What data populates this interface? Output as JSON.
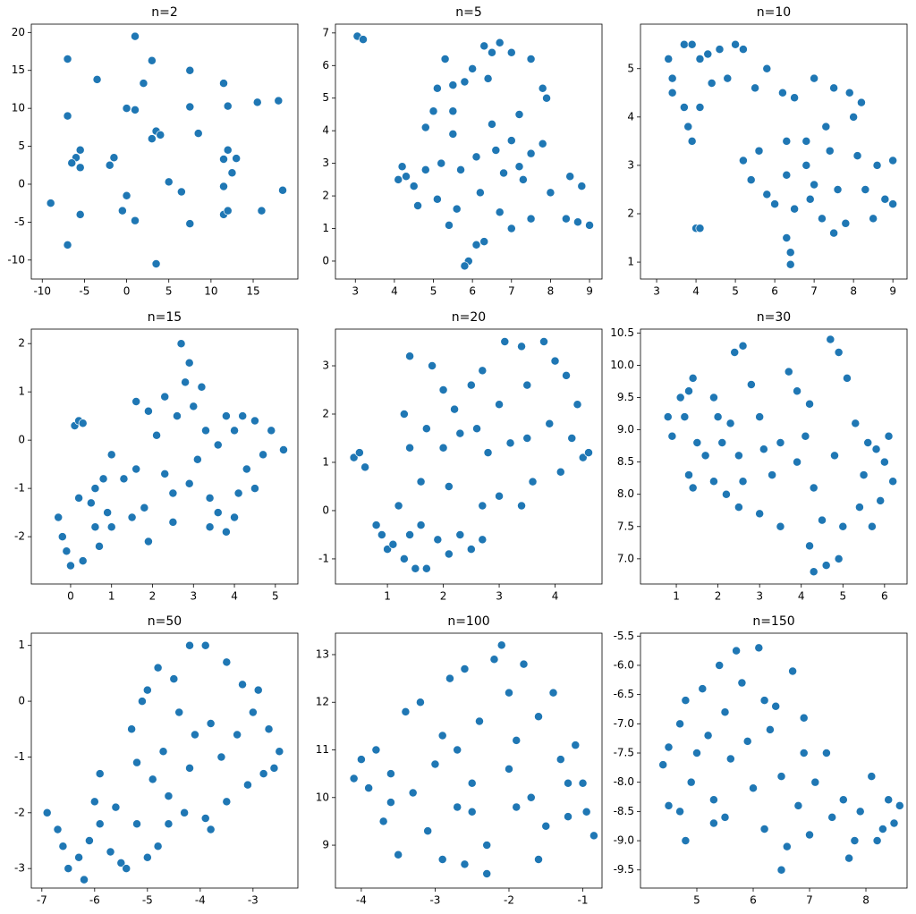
{
  "chart_data": [
    {
      "type": "scatter",
      "title": "n=2",
      "color": "#1f77b4",
      "x": [
        1,
        -7,
        3,
        7.5,
        -3.5,
        2,
        11.5,
        -7,
        0,
        1,
        7.5,
        12,
        15.5,
        18,
        3.5,
        4,
        3,
        8.5,
        -5.5,
        -6,
        -6.5,
        -5.5,
        -2,
        -1.5,
        12,
        11.5,
        13,
        12.5,
        5,
        6.5,
        0,
        -9,
        -0.5,
        -5.5,
        1,
        7.5,
        11.5,
        12,
        16,
        11.5,
        18.5,
        -7,
        3.5
      ],
      "values": [
        19.5,
        16.5,
        16.3,
        15,
        13.8,
        13.3,
        13.3,
        9,
        10,
        9.8,
        10.2,
        10.3,
        10.8,
        11,
        7,
        6.5,
        6,
        6.7,
        4.5,
        3.5,
        2.8,
        2.2,
        2.5,
        3.5,
        4.5,
        3.3,
        3.4,
        1.5,
        0.3,
        -1,
        -1.5,
        -2.5,
        -3.5,
        -4,
        -4.8,
        -5.2,
        -4,
        -3.5,
        -3.5,
        -0.3,
        -0.8,
        -8,
        -10.5
      ],
      "xlim": [
        -11.3,
        20.3
      ],
      "ylim": [
        -12.5,
        21.1
      ],
      "xticks": [
        -10,
        -5,
        0,
        5,
        10,
        15
      ],
      "yticks": [
        -10,
        -5,
        0,
        5,
        10,
        15,
        20
      ]
    },
    {
      "type": "scatter",
      "title": "n=5",
      "color": "#1f77b4",
      "x": [
        3.05,
        3.2,
        5.3,
        5.5,
        5.1,
        6.3,
        6.5,
        6.7,
        7,
        7.5,
        6,
        6.4,
        5.8,
        7.8,
        7.9,
        5,
        5.5,
        6.5,
        7.2,
        4.8,
        5.5,
        6.6,
        7,
        7.5,
        7.8,
        4.2,
        4.3,
        4.5,
        4.1,
        4.8,
        5.2,
        5.7,
        6.1,
        6.8,
        7.2,
        8.5,
        8.8,
        4.6,
        5.1,
        5.6,
        6.2,
        6.7,
        7.5,
        8,
        8.4,
        9,
        5.4,
        6.3,
        6.1,
        7,
        5.9,
        5.8,
        8.7,
        7.3
      ],
      "values": [
        6.9,
        6.8,
        6.2,
        5.4,
        5.3,
        6.6,
        6.4,
        6.7,
        6.4,
        6.2,
        5.9,
        5.6,
        5.5,
        5.3,
        5,
        4.6,
        4.6,
        4.2,
        4.5,
        4.1,
        3.9,
        3.4,
        3.7,
        3.3,
        3.6,
        2.9,
        2.6,
        2.3,
        2.5,
        2.8,
        3,
        2.8,
        3.2,
        2.7,
        2.9,
        2.6,
        2.3,
        1.7,
        1.9,
        1.6,
        2.1,
        1.5,
        1.3,
        2.1,
        1.3,
        1.1,
        1.1,
        0.6,
        0.5,
        1,
        0,
        -0.15,
        1.2,
        2.5
      ],
      "xlim": [
        2.49,
        9.32
      ],
      "ylim": [
        -0.55,
        7.27
      ],
      "xticks": [
        3,
        4,
        5,
        6,
        7,
        8,
        9
      ],
      "yticks": [
        0,
        1,
        2,
        3,
        4,
        5,
        6,
        7
      ]
    },
    {
      "type": "scatter",
      "title": "n=10",
      "color": "#1f77b4",
      "x": [
        3.3,
        3.4,
        3.7,
        3.9,
        4.1,
        4.3,
        4.6,
        5,
        5.2,
        3.4,
        3.7,
        4.1,
        4.4,
        4.8,
        3.8,
        3.9,
        5.8,
        5.5,
        6.2,
        7,
        7.5,
        7.9,
        8.2,
        6.5,
        8,
        7.3,
        6.8,
        6.3,
        5.6,
        5.2,
        5.4,
        5.8,
        6.3,
        6.8,
        7.4,
        8.1,
        8.6,
        9,
        7,
        7.6,
        8.3,
        8.8,
        6,
        6.5,
        7.2,
        7.8,
        8.5,
        9,
        6.3,
        6.4,
        6.4,
        4,
        4.1,
        7.5,
        6.9
      ],
      "values": [
        5.2,
        4.8,
        5.5,
        5.5,
        5.2,
        5.3,
        5.4,
        5.5,
        5.4,
        4.5,
        4.2,
        4.2,
        4.7,
        4.8,
        3.8,
        3.5,
        5,
        4.6,
        4.5,
        4.8,
        4.6,
        4.5,
        4.3,
        4.4,
        4,
        3.8,
        3.5,
        3.5,
        3.3,
        3.1,
        2.7,
        2.4,
        2.8,
        3,
        3.3,
        3.2,
        3,
        3.1,
        2.6,
        2.5,
        2.5,
        2.3,
        2.2,
        2.1,
        1.9,
        1.8,
        1.9,
        2.2,
        1.5,
        1.2,
        0.95,
        1.7,
        1.7,
        1.6,
        2.3
      ],
      "xlim": [
        2.59,
        9.36
      ],
      "ylim": [
        0.65,
        5.92
      ],
      "xticks": [
        3,
        4,
        5,
        6,
        7,
        8,
        9
      ],
      "yticks": [
        1,
        2,
        3,
        4,
        5
      ]
    },
    {
      "type": "scatter",
      "title": "n=15",
      "color": "#1f77b4",
      "x": [
        0.1,
        0.2,
        0.3,
        -0.3,
        -0.2,
        -0.1,
        0,
        0.3,
        0.2,
        0.5,
        0.6,
        0.7,
        0.9,
        1,
        0.8,
        0.6,
        1,
        1.3,
        1.5,
        1.8,
        1.6,
        1.9,
        1.6,
        1.9,
        2.1,
        2.3,
        2.5,
        2.3,
        2.6,
        2.7,
        2.9,
        2.8,
        3,
        3.3,
        2.9,
        3.1,
        2.5,
        3.4,
        3.6,
        3.8,
        3.4,
        3.6,
        3.8,
        4,
        4.2,
        4.5,
        4.7,
        4.9,
        4.3,
        4.1,
        4.5,
        4,
        5.2,
        3.2
      ],
      "values": [
        0.3,
        0.4,
        0.35,
        -1.6,
        -2,
        -2.3,
        -2.6,
        -2.5,
        -1.2,
        -1.3,
        -1.8,
        -2.2,
        -1.5,
        -1.8,
        -0.8,
        -1,
        -0.3,
        -0.8,
        -1.6,
        -1.4,
        -0.6,
        -2.1,
        0.8,
        0.6,
        0.1,
        -0.7,
        -1.1,
        0.9,
        0.5,
        2,
        1.6,
        1.2,
        0.7,
        0.2,
        -0.9,
        -0.4,
        -1.7,
        -1.2,
        -1.5,
        -1.9,
        -1.8,
        -0.1,
        0.5,
        0.2,
        0.5,
        0.4,
        -0.3,
        0.2,
        -0.6,
        -1.1,
        -1,
        -1.6,
        -0.2,
        1.1
      ],
      "xlim": [
        -0.96,
        5.55
      ],
      "ylim": [
        -2.98,
        2.3
      ],
      "xticks": [
        0,
        1,
        2,
        3,
        4,
        5
      ],
      "yticks": [
        -2,
        -1,
        0,
        1,
        2
      ]
    },
    {
      "type": "scatter",
      "title": "n=20",
      "color": "#1f77b4",
      "x": [
        0.4,
        0.5,
        0.6,
        0.8,
        0.9,
        1,
        1.1,
        1.3,
        1.5,
        1.7,
        1.4,
        1.6,
        1.9,
        2.1,
        2.3,
        2.5,
        2.7,
        1.2,
        1.6,
        1.4,
        1.7,
        1.3,
        1.4,
        1.8,
        2,
        2.2,
        2.5,
        2.7,
        3.1,
        3.4,
        3.8,
        4,
        4.2,
        3.5,
        3,
        2.6,
        2,
        2.3,
        2.8,
        3.2,
        3.5,
        3.9,
        4.3,
        4.5,
        4.6,
        4.1,
        3.6,
        3,
        2.7,
        3.4,
        2.1,
        4.4
      ],
      "values": [
        1.1,
        1.2,
        0.9,
        -0.3,
        -0.5,
        -0.8,
        -0.7,
        -1,
        -1.2,
        -1.2,
        -0.5,
        -0.3,
        -0.6,
        -0.9,
        -0.5,
        -0.8,
        -0.6,
        0.1,
        0.6,
        1.3,
        1.7,
        2,
        3.2,
        3,
        2.5,
        2.1,
        2.6,
        2.9,
        3.5,
        3.4,
        3.5,
        3.1,
        2.8,
        2.6,
        2.2,
        1.7,
        1.3,
        1.6,
        1.2,
        1.4,
        1.5,
        1.8,
        1.5,
        1.1,
        1.2,
        0.8,
        0.6,
        0.3,
        0.1,
        0.1,
        0.5,
        2.2
      ],
      "xlim": [
        0.07,
        4.84
      ],
      "ylim": [
        -1.52,
        3.76
      ],
      "xticks": [
        1,
        2,
        3,
        4
      ],
      "yticks": [
        -1,
        0,
        1,
        2,
        3
      ]
    },
    {
      "type": "scatter",
      "title": "n=30",
      "color": "#1f77b4",
      "x": [
        0.8,
        0.9,
        1.1,
        1.3,
        1.4,
        1.2,
        1.5,
        1.3,
        1.4,
        1.7,
        1.9,
        2,
        2.1,
        2.3,
        2.5,
        1.9,
        2.2,
        2.4,
        2.6,
        2.8,
        3,
        3.1,
        2.6,
        3,
        2.5,
        3.5,
        3.3,
        3.5,
        3.7,
        3.9,
        4.2,
        4.1,
        3.9,
        4.3,
        4.5,
        4.2,
        4.6,
        4.3,
        4.9,
        5,
        4.8,
        4.7,
        4.9,
        5.1,
        5.3,
        5.6,
        5.5,
        5.8,
        6.1,
        6.2,
        5.9,
        5.4,
        5.7,
        6
      ],
      "values": [
        9.2,
        8.9,
        9.5,
        9.6,
        9.8,
        9.2,
        8.8,
        8.3,
        8.1,
        8.6,
        9.5,
        9.2,
        8.8,
        9.1,
        8.6,
        8.2,
        8,
        10.2,
        10.3,
        9.7,
        9.2,
        8.7,
        8.2,
        7.7,
        7.8,
        7.5,
        8.3,
        8.8,
        9.9,
        9.6,
        9.4,
        8.9,
        8.5,
        8.1,
        7.6,
        7.2,
        6.9,
        6.8,
        7,
        7.5,
        8.6,
        10.4,
        10.2,
        9.8,
        9.1,
        8.8,
        8.3,
        8.7,
        8.9,
        8.2,
        7.9,
        7.8,
        7.5,
        8.5
      ],
      "xlim": [
        0.14,
        6.54
      ],
      "ylim": [
        6.61,
        10.56
      ],
      "xticks": [
        1,
        2,
        3,
        4,
        5,
        6
      ],
      "yticks": [
        {
          "value": 7,
          "label": "7.0"
        },
        7.5,
        {
          "value": 8,
          "label": "8.0"
        },
        8.5,
        {
          "value": 9,
          "label": "9.0"
        },
        9.5,
        {
          "value": 10,
          "label": "10.0"
        },
        10.5
      ]
    },
    {
      "type": "scatter",
      "title": "n=50",
      "color": "#1f77b4",
      "x": [
        -6.9,
        -6.7,
        -6.6,
        -6.5,
        -6.3,
        -6.2,
        -6.1,
        -6,
        -5.9,
        -5.7,
        -5.5,
        -5.4,
        -5.6,
        -5.2,
        -5,
        -4.8,
        -4.6,
        -4.3,
        -4.6,
        -4.9,
        -5.2,
        -5.3,
        -5.1,
        -5,
        -4.8,
        -4.5,
        -4.2,
        -3.9,
        -3.5,
        -3.2,
        -2.9,
        -4.4,
        -4.1,
        -3.8,
        -3.6,
        -3.3,
        -3,
        -2.7,
        -2.5,
        -2.8,
        -3.1,
        -3.5,
        -3.8,
        -4.2,
        -4.7,
        -5.9,
        -2.6,
        -3.9
      ],
      "values": [
        -2,
        -2.3,
        -2.6,
        -3,
        -2.8,
        -3.2,
        -2.5,
        -1.8,
        -2.2,
        -2.7,
        -2.9,
        -3,
        -1.9,
        -2.2,
        -2.8,
        -2.6,
        -2.2,
        -2,
        -1.7,
        -1.4,
        -1.1,
        -0.5,
        0,
        0.2,
        0.6,
        0.4,
        1,
        1,
        0.7,
        0.3,
        0.2,
        -0.2,
        -0.6,
        -0.4,
        -1,
        -0.6,
        -0.2,
        -0.5,
        -0.9,
        -1.3,
        -1.5,
        -1.8,
        -2.3,
        -1.2,
        -0.9,
        -1.3,
        -1.2,
        -2.1
      ],
      "xlim": [
        -7.2,
        -2.15
      ],
      "ylim": [
        -3.35,
        1.22
      ],
      "xticks": [
        -7,
        -6,
        -5,
        -4,
        -3
      ],
      "yticks": [
        -3,
        -2,
        -1,
        0,
        1
      ]
    },
    {
      "type": "scatter",
      "title": "n=100",
      "color": "#1f77b4",
      "x": [
        -4.1,
        -4,
        -3.9,
        -3.8,
        -3.7,
        -3.6,
        -3.5,
        -3.4,
        -3.2,
        -3.3,
        -3.1,
        -3,
        -2.9,
        -2.8,
        -2.7,
        -2.6,
        -2.5,
        -2.4,
        -2.3,
        -2.2,
        -2.1,
        -2,
        -1.9,
        -2,
        -1.8,
        -1.7,
        -1.6,
        -1.5,
        -1.4,
        -1.3,
        -1.2,
        -1.1,
        -1,
        -0.95,
        -0.85,
        -2.6,
        -2.3,
        -2.9,
        -1.6,
        -2.5,
        -3.6,
        -1.9,
        -2.7,
        -1.2
      ],
      "values": [
        10.4,
        10.8,
        10.2,
        11,
        9.5,
        10.5,
        8.8,
        11.8,
        12,
        10.1,
        9.3,
        10.7,
        11.3,
        12.5,
        9.8,
        12.7,
        10.3,
        11.6,
        9,
        12.9,
        13.2,
        12.2,
        11.2,
        10.6,
        12.8,
        10,
        11.7,
        9.4,
        12.2,
        10.8,
        9.6,
        11.1,
        10.3,
        9.7,
        9.2,
        8.6,
        8.4,
        8.7,
        8.7,
        9.7,
        9.9,
        9.8,
        11,
        10.3
      ],
      "xlim": [
        -4.35,
        -0.74
      ],
      "ylim": [
        8.1,
        13.45
      ],
      "xticks": [
        -4,
        -3,
        -2,
        -1
      ],
      "yticks": [
        9,
        10,
        11,
        12,
        13
      ]
    },
    {
      "type": "scatter",
      "title": "n=150",
      "color": "#1f77b4",
      "x": [
        4.4,
        4.5,
        4.5,
        4.7,
        4.8,
        4.7,
        4.8,
        4.9,
        5,
        5.1,
        5.2,
        5.3,
        5.4,
        5.5,
        5.6,
        5.5,
        5.7,
        5.8,
        5.9,
        6,
        6.1,
        6.2,
        6.2,
        6.3,
        6.4,
        6.5,
        6.5,
        6.6,
        6.7,
        6.8,
        6.9,
        7,
        7.1,
        7.3,
        7.4,
        7.6,
        7.7,
        7.9,
        8.1,
        8.3,
        8.4,
        8.5,
        8.6,
        8.2,
        7.8,
        6.9,
        5.3
      ],
      "values": [
        -7.7,
        -7.4,
        -8.4,
        -7,
        -6.6,
        -8.5,
        -9,
        -8,
        -7.5,
        -6.4,
        -7.2,
        -8.3,
        -6,
        -6.8,
        -7.6,
        -8.6,
        -5.75,
        -6.3,
        -7.3,
        -8.1,
        -5.7,
        -6.6,
        -8.8,
        -7.1,
        -6.7,
        -7.9,
        -9.5,
        -9.1,
        -6.1,
        -8.4,
        -7.5,
        -8.9,
        -8,
        -7.5,
        -8.6,
        -8.3,
        -9.3,
        -8.5,
        -7.9,
        -8.8,
        -8.3,
        -8.7,
        -8.4,
        -9,
        -9,
        -6.9,
        -8.7
      ],
      "xlim": [
        4.0,
        8.73
      ],
      "ylim": [
        -9.81,
        -5.45
      ],
      "xticks": [
        5,
        6,
        7,
        8
      ],
      "yticks": [
        {
          "value": -9.5,
          "label": "-9.5"
        },
        {
          "value": -9,
          "label": "-9.0"
        },
        -8.5,
        {
          "value": -8,
          "label": "-8.0"
        },
        -7.5,
        {
          "value": -7,
          "label": "-7.0"
        },
        -6.5,
        {
          "value": -6,
          "label": "-6.0"
        },
        -5.5
      ]
    }
  ]
}
